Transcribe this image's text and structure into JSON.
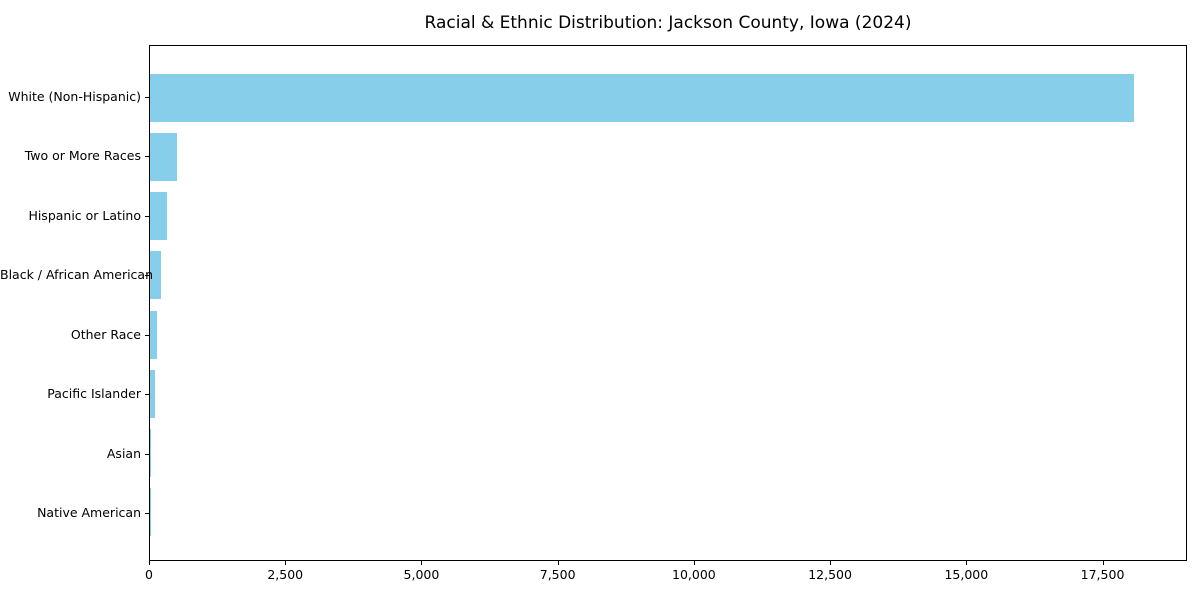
{
  "chart_data": {
    "type": "bar",
    "orientation": "horizontal",
    "title": "Racial & Ethnic Distribution: Jackson County, Iowa (2024)",
    "categories": [
      "White (Non-Hispanic)",
      "Two or More Races",
      "Hispanic or Latino",
      "Black / African American",
      "Other Race",
      "Pacific Islander",
      "Asian",
      "Native American"
    ],
    "values": [
      18100,
      490,
      305,
      195,
      120,
      95,
      15,
      5
    ],
    "bar_color": "#87CEEB",
    "xlabel": "",
    "ylabel": "",
    "xlim": [
      0,
      19050
    ],
    "x_ticks": [
      0,
      2500,
      5000,
      7500,
      10000,
      12500,
      15000,
      17500
    ],
    "x_tick_labels": [
      "0",
      "2,500",
      "5,000",
      "7,500",
      "10,000",
      "12,500",
      "15,000",
      "17,500"
    ],
    "grid": false,
    "legend": null,
    "plot_border_color": "#000000",
    "background_color": "#ffffff"
  }
}
